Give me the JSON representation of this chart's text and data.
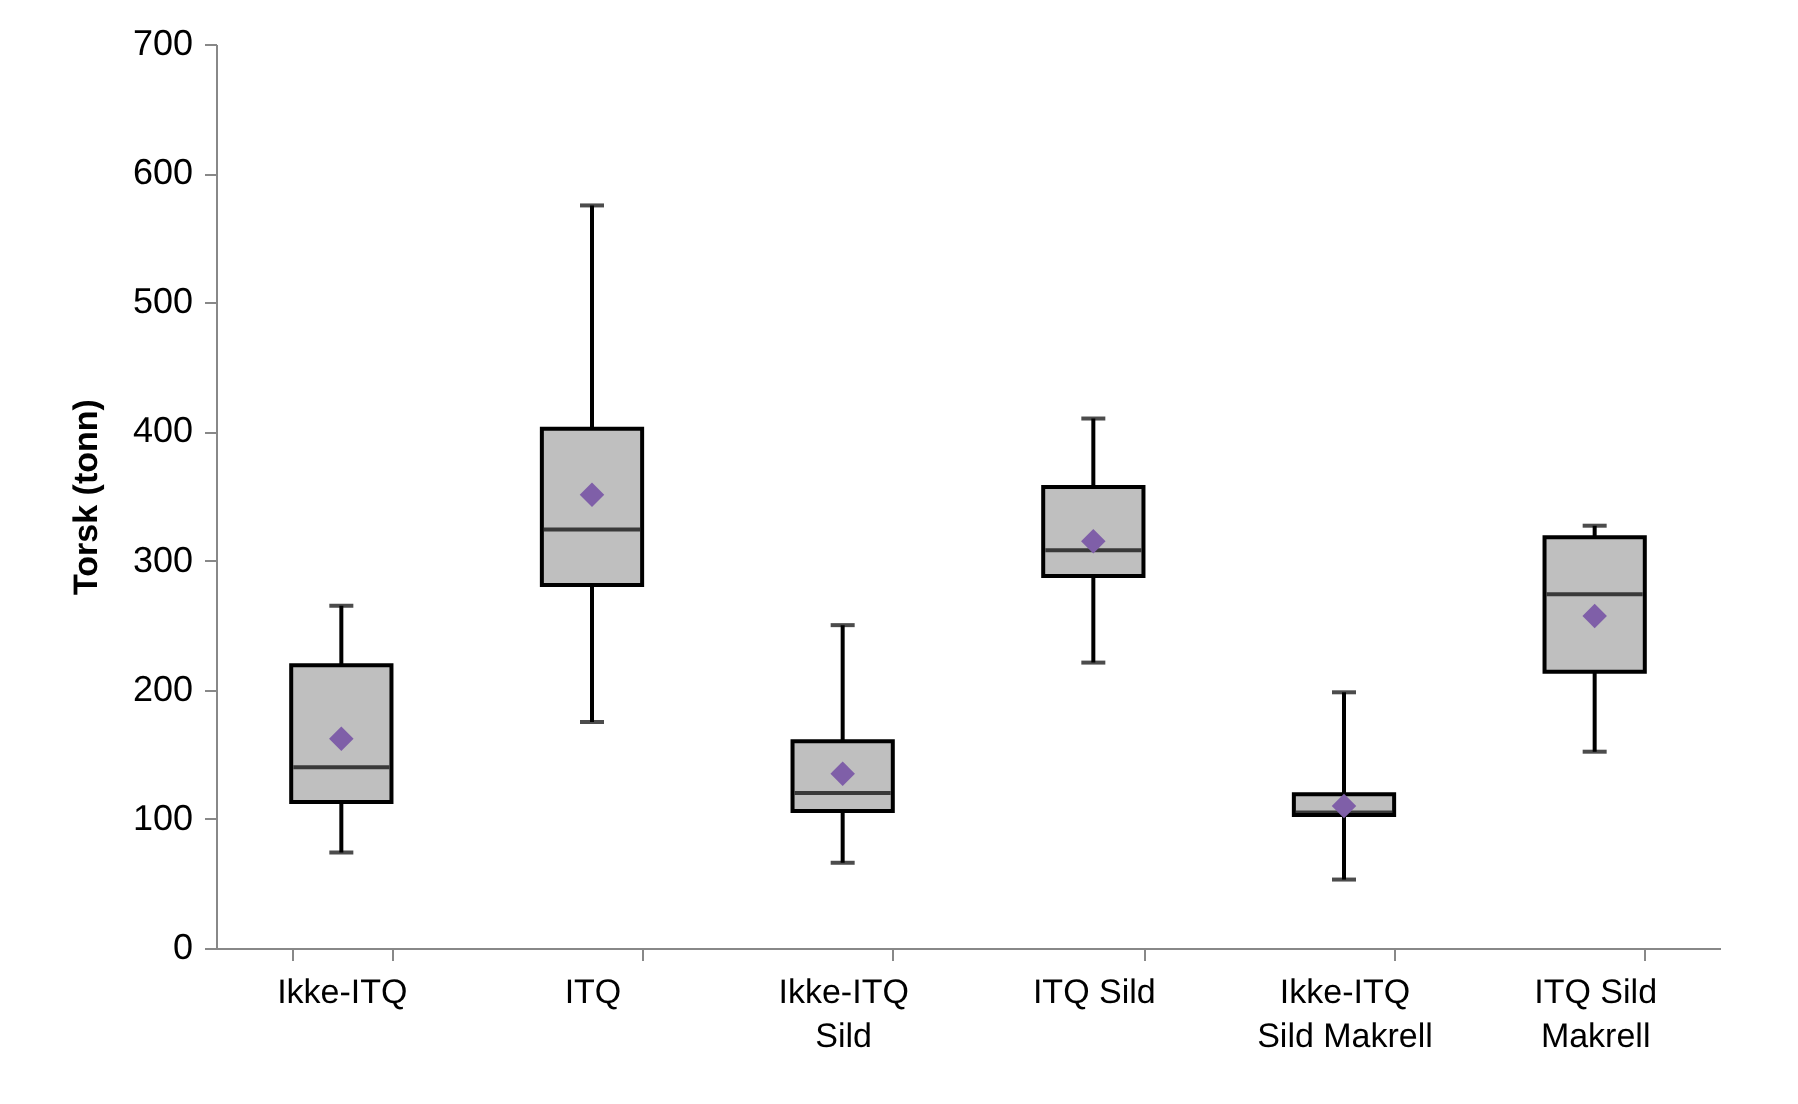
{
  "chart_data": {
    "type": "box",
    "ylabel": "Torsk (tonn)",
    "categories": [
      "Ikke-ITQ",
      "ITQ",
      "Ikke-ITQ\nSild",
      "ITQ Sild",
      "Ikke-ITQ\nSild Makrell",
      "ITQ Sild\nMakrell"
    ],
    "ylim": [
      0,
      700
    ],
    "yticks": [
      0,
      100,
      200,
      300,
      400,
      500,
      600,
      700
    ],
    "grid": false,
    "marker": "diamond",
    "series": [
      {
        "color": "#bfbfbf",
        "boxes": [
          {
            "low": 74,
            "q1": 113,
            "median": 140,
            "q3": 219,
            "high": 265,
            "mean": 162
          },
          {
            "low": 175,
            "q1": 281,
            "median": 324,
            "q3": 402,
            "high": 575,
            "mean": 351
          },
          {
            "low": 66,
            "q1": 106,
            "median": 120,
            "q3": 160,
            "high": 250,
            "mean": 135
          },
          {
            "low": 221,
            "q1": 288,
            "median": 308,
            "q3": 357,
            "high": 410,
            "mean": 315
          },
          {
            "low": 53,
            "q1": 103,
            "median": 105,
            "q3": 119,
            "high": 198,
            "mean": 110
          },
          {
            "low": 152,
            "q1": 214,
            "median": 274,
            "q3": 318,
            "high": 327,
            "mean": 257
          }
        ]
      }
    ]
  }
}
